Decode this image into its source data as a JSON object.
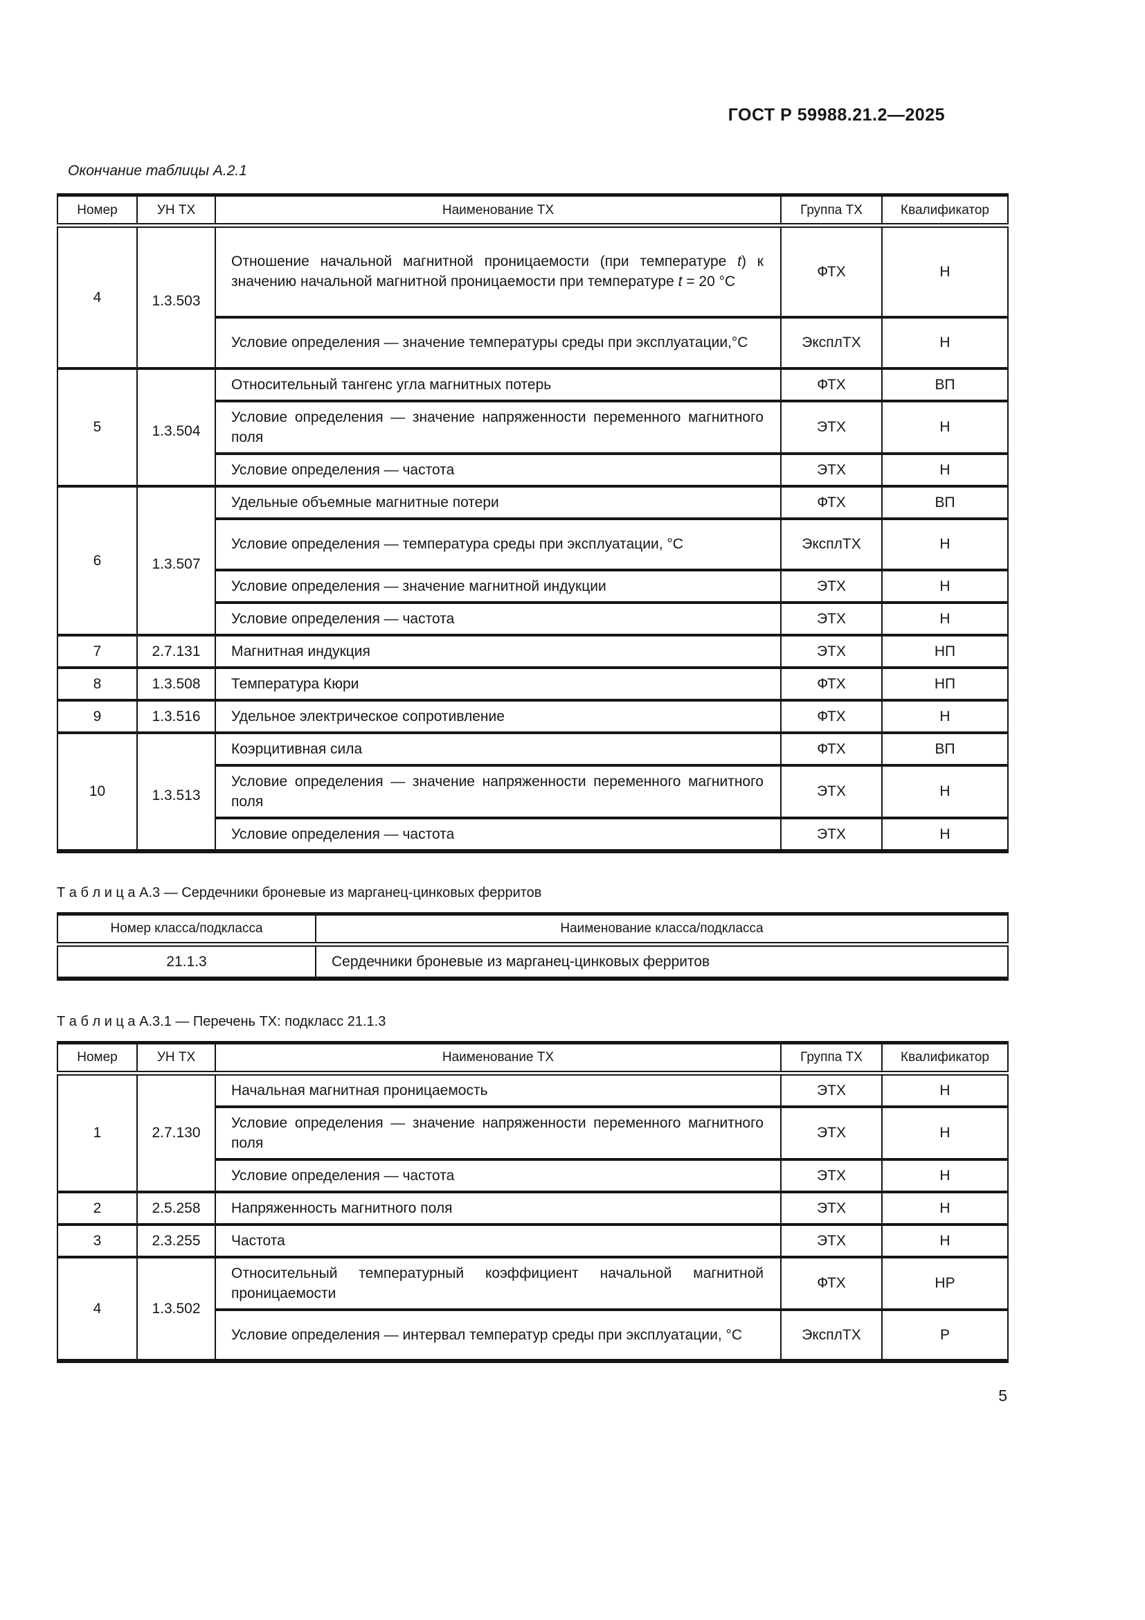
{
  "page": {
    "header": "ГОСТ Р 59988.21.2—2025",
    "page_number": "5"
  },
  "table_a21": {
    "caption": "Окончание таблицы А.2.1",
    "columns": [
      "Номер",
      "УН ТХ",
      "Наименование ТХ",
      "Группа ТХ",
      "Квалификатор"
    ],
    "groups": [
      {
        "num": "4",
        "un": "1.3.503",
        "rows": [
          {
            "name": "Отношение начальной магнитной проницаемости (при темпе­ратуре <i>t</i>) к значению начальной магнитной проницаемости при температуре <i>t</i> = 20 °С",
            "group": "ФТХ",
            "qual": "Н"
          },
          {
            "name": "Условие определения — значение температуры среды при эксплуатации,°С",
            "group": "ЭксплТХ",
            "qual": "Н"
          }
        ]
      },
      {
        "num": "5",
        "un": "1.3.504",
        "rows": [
          {
            "name": "Относительный тангенс угла магнитных потерь",
            "group": "ФТХ",
            "qual": "ВП"
          },
          {
            "name": "Условие определения — значение напряженности переменного магнитного поля",
            "group": "ЭТХ",
            "qual": "Н"
          },
          {
            "name": "Условие определения — частота",
            "group": "ЭТХ",
            "qual": "Н"
          }
        ]
      },
      {
        "num": "6",
        "un": "1.3.507",
        "rows": [
          {
            "name": "Удельные объемные магнитные потери",
            "group": "ФТХ",
            "qual": "ВП"
          },
          {
            "name": "Условие определения — температура среды при эксплуатации, °С",
            "group": "ЭксплТХ",
            "qual": "Н"
          },
          {
            "name": "Условие определения — значение магнитной индукции",
            "group": "ЭТХ",
            "qual": "Н"
          },
          {
            "name": "Условие определения — частота",
            "group": "ЭТХ",
            "qual": "Н"
          }
        ]
      },
      {
        "num": "7",
        "un": "2.7.131",
        "rows": [
          {
            "name": "Магнитная индукция",
            "group": "ЭТХ",
            "qual": "НП"
          }
        ]
      },
      {
        "num": "8",
        "un": "1.3.508",
        "rows": [
          {
            "name": "Температура Кюри",
            "group": "ФТХ",
            "qual": "НП"
          }
        ]
      },
      {
        "num": "9",
        "un": "1.3.516",
        "rows": [
          {
            "name": "Удельное электрическое сопротивление",
            "group": "ФТХ",
            "qual": "Н"
          }
        ]
      },
      {
        "num": "10",
        "un": "1.3.513",
        "rows": [
          {
            "name": "Коэрцитивная сила",
            "group": "ФТХ",
            "qual": "ВП"
          },
          {
            "name": "Условие определения — значение напряженности переменного магнитного поля",
            "group": "ЭТХ",
            "qual": "Н"
          },
          {
            "name": "Условие определения — частота",
            "group": "ЭТХ",
            "qual": "Н"
          }
        ]
      }
    ]
  },
  "table_a3": {
    "caption": "Т а б л и ц а  А.3 — Сердечники броневые из марганец-цинковых ферритов",
    "columns": [
      "Номер класса/подкласса",
      "Наименование класса/подкласса"
    ],
    "rows": [
      {
        "num": "21.1.3",
        "name": "Сердечники броневые из марганец-цинковых ферритов"
      }
    ]
  },
  "table_a31": {
    "caption": "Т а б л и ц а  А.3.1 — Перечень ТХ: подкласс 21.1.3",
    "columns": [
      "Номер",
      "УН ТХ",
      "Наименование ТХ",
      "Группа ТХ",
      "Квалификатор"
    ],
    "groups": [
      {
        "num": "1",
        "un": "2.7.130",
        "rows": [
          {
            "name": "Начальная магнитная проницаемость",
            "group": "ЭТХ",
            "qual": "Н"
          },
          {
            "name": "Условие определения — значение напряженности переменного магнитного поля",
            "group": "ЭТХ",
            "qual": "Н"
          },
          {
            "name": "Условие определения — частота",
            "group": "ЭТХ",
            "qual": "Н"
          }
        ]
      },
      {
        "num": "2",
        "un": "2.5.258",
        "rows": [
          {
            "name": "Напряженность магнитного поля",
            "group": "ЭТХ",
            "qual": "Н"
          }
        ]
      },
      {
        "num": "3",
        "un": "2.3.255",
        "rows": [
          {
            "name": "Частота",
            "group": "ЭТХ",
            "qual": "Н"
          }
        ]
      },
      {
        "num": "4",
        "un": "1.3.502",
        "rows": [
          {
            "name": "Относительный температурный коэффициент начальной маг­нитной проницаемости",
            "group": "ФТХ",
            "qual": "НР"
          },
          {
            "name": "Условие определения — интервал температур среды при экс­плуатации, °С",
            "group": "ЭксплТХ",
            "qual": "Р"
          }
        ]
      }
    ]
  }
}
